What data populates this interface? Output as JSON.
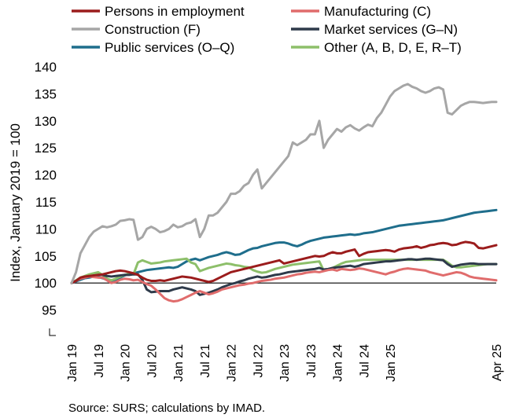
{
  "chart_data": {
    "type": "line",
    "ylabel": "Index, January 2019 = 100",
    "source": "Source: SURS; calculations by IMAD.",
    "ylim": [
      90,
      140
    ],
    "yticks": [
      "140",
      "135",
      "130",
      "125",
      "120",
      "115",
      "110",
      "105",
      "100",
      "95"
    ],
    "xticks": [
      "Jan 19",
      "Jul 19",
      "Jan 20",
      "Jul 20",
      "Jan 21",
      "Jul 21",
      "Jan 22",
      "Jul 22",
      "Jan 23",
      "Jul 23",
      "Jan 24",
      "Jul 24",
      "Jan 25",
      "Apr 25"
    ],
    "x_start": "2019-01",
    "x_end": "2025-04",
    "legend_position": "top",
    "series": [
      {
        "name": "Persons in employment",
        "color": "#9b1c1c",
        "values": [
          100.0,
          100.4,
          101.0,
          101.2,
          101.3,
          101.4,
          101.5,
          101.6,
          101.8,
          102.0,
          102.2,
          102.3,
          102.2,
          102.0,
          101.8,
          101.5,
          101.0,
          100.6,
          100.4,
          100.4,
          100.5,
          100.4,
          100.6,
          100.8,
          101.0,
          101.2,
          101.1,
          101.0,
          100.8,
          100.6,
          100.4,
          100.2,
          100.4,
          100.8,
          101.2,
          101.6,
          102.0,
          102.2,
          102.4,
          102.6,
          102.8,
          103.0,
          103.2,
          103.4,
          103.6,
          103.8,
          104.0,
          104.2,
          103.6,
          103.8,
          104.0,
          104.2,
          104.4,
          104.6,
          104.8,
          105.0,
          104.9,
          105.0,
          105.4,
          105.7,
          105.5,
          105.5,
          105.8,
          106.0,
          106.2,
          105.0,
          105.4,
          105.7,
          105.8,
          105.9,
          106.0,
          106.1,
          106.0,
          105.8,
          106.2,
          106.4,
          106.5,
          106.6,
          106.8,
          106.5,
          106.7,
          107.0,
          107.1,
          107.3,
          107.4,
          107.3,
          107.0,
          107.1,
          107.4,
          107.6,
          107.5,
          107.3,
          106.5,
          106.4,
          106.6,
          106.8,
          107.0
        ]
      },
      {
        "name": "Manufacturing (C)",
        "color": "#e06c6c",
        "values": [
          100.0,
          100.4,
          100.8,
          101.0,
          101.2,
          101.1,
          101.0,
          101.0,
          100.5,
          100.0,
          100.2,
          100.6,
          100.8,
          100.7,
          100.5,
          100.6,
          100.2,
          99.8,
          99.5,
          98.8,
          98.0,
          97.2,
          96.8,
          96.6,
          96.7,
          97.0,
          97.4,
          97.8,
          98.2,
          98.5,
          98.2,
          97.9,
          98.1,
          98.4,
          98.8,
          99.0,
          99.2,
          99.4,
          99.6,
          99.7,
          99.9,
          100.0,
          100.2,
          100.4,
          100.5,
          100.6,
          100.8,
          100.9,
          101.0,
          101.2,
          101.4,
          101.6,
          101.7,
          101.9,
          102.0,
          102.1,
          102.0,
          102.2,
          102.4,
          102.5,
          102.3,
          102.6,
          102.5,
          102.4,
          102.5,
          102.7,
          102.6,
          102.4,
          102.2,
          102.0,
          101.8,
          101.6,
          101.9,
          102.1,
          102.4,
          102.6,
          102.7,
          102.6,
          102.5,
          102.4,
          102.3,
          102.0,
          101.8,
          101.6,
          101.4,
          101.6,
          101.8,
          102.0,
          101.9,
          101.6,
          101.2,
          101.0,
          100.9,
          100.8,
          100.7,
          100.6,
          100.5
        ]
      },
      {
        "name": "Construction (F)",
        "color": "#a6a6a6",
        "values": [
          100.0,
          102.0,
          105.5,
          107.0,
          108.5,
          109.5,
          110.0,
          110.5,
          110.3,
          110.5,
          110.8,
          111.5,
          111.6,
          111.8,
          111.7,
          108.0,
          108.5,
          110.0,
          110.4,
          110.0,
          109.4,
          109.6,
          110.0,
          110.8,
          110.3,
          110.5,
          111.0,
          111.2,
          111.8,
          108.5,
          110.0,
          112.5,
          112.5,
          113.0,
          114.0,
          115.0,
          116.5,
          116.5,
          117.0,
          118.0,
          118.5,
          120.0,
          121.0,
          117.5,
          118.5,
          119.5,
          120.5,
          121.5,
          122.5,
          123.5,
          126.0,
          125.5,
          126.0,
          126.5,
          127.5,
          127.5,
          130.0,
          125.0,
          126.5,
          127.5,
          128.5,
          128.0,
          128.8,
          129.2,
          128.6,
          128.2,
          128.8,
          129.3,
          129.0,
          130.5,
          131.5,
          133.0,
          134.5,
          135.5,
          136.0,
          136.5,
          136.8,
          136.3,
          136.0,
          135.5,
          135.2,
          135.5,
          136.0,
          136.2,
          135.8,
          131.5,
          131.2,
          132.0,
          132.8,
          133.2,
          133.5,
          133.5,
          133.4,
          133.3,
          133.4,
          133.5,
          133.5
        ]
      },
      {
        "name": "Market services (G–N)",
        "color": "#2e3a4a",
        "values": [
          100.0,
          100.4,
          100.8,
          101.0,
          101.2,
          101.4,
          101.5,
          101.5,
          101.3,
          101.2,
          101.3,
          101.4,
          101.5,
          101.5,
          101.6,
          101.6,
          100.6,
          98.8,
          98.3,
          98.4,
          98.5,
          98.5,
          98.5,
          98.8,
          99.0,
          99.2,
          99.0,
          98.8,
          98.5,
          97.8,
          98.0,
          98.2,
          98.5,
          98.8,
          99.2,
          99.5,
          99.8,
          100.0,
          100.3,
          100.5,
          100.8,
          101.0,
          101.2,
          101.0,
          101.1,
          101.3,
          101.5,
          101.6,
          101.8,
          102.0,
          102.1,
          102.2,
          102.3,
          102.4,
          102.5,
          102.6,
          102.8,
          102.5,
          102.6,
          102.8,
          102.9,
          103.0,
          103.1,
          103.2,
          103.0,
          103.2,
          103.5,
          103.6,
          103.7,
          103.8,
          103.9,
          104.0,
          104.0,
          104.1,
          104.2,
          104.3,
          104.4,
          104.4,
          104.3,
          104.4,
          104.5,
          104.5,
          104.4,
          104.3,
          104.2,
          103.5,
          103.0,
          103.2,
          103.4,
          103.5,
          103.6,
          103.6,
          103.5,
          103.5,
          103.5,
          103.5,
          103.5
        ]
      },
      {
        "name": "Public services (O–Q)",
        "color": "#1f6e8c",
        "values": [
          100.0,
          100.3,
          100.6,
          100.9,
          101.0,
          101.2,
          101.1,
          100.9,
          100.6,
          100.4,
          100.6,
          101.0,
          101.4,
          101.7,
          101.8,
          102.0,
          102.2,
          102.4,
          102.5,
          102.6,
          102.7,
          102.8,
          102.9,
          102.8,
          103.0,
          103.5,
          104.0,
          104.3,
          104.5,
          104.2,
          104.5,
          104.8,
          105.0,
          105.2,
          105.5,
          105.7,
          105.5,
          105.2,
          105.3,
          105.7,
          106.1,
          106.4,
          106.5,
          106.8,
          107.0,
          107.2,
          107.4,
          107.5,
          107.5,
          107.3,
          107.0,
          106.8,
          107.1,
          107.5,
          107.8,
          108.0,
          108.2,
          108.4,
          108.5,
          108.6,
          108.7,
          108.8,
          108.9,
          109.0,
          108.9,
          109.0,
          109.2,
          109.3,
          109.4,
          109.6,
          109.8,
          110.0,
          110.2,
          110.4,
          110.6,
          110.7,
          110.8,
          110.9,
          111.0,
          111.1,
          111.2,
          111.3,
          111.4,
          111.5,
          111.6,
          111.8,
          112.0,
          112.2,
          112.4,
          112.6,
          112.8,
          113.0,
          113.1,
          113.2,
          113.3,
          113.4,
          113.5
        ]
      },
      {
        "name": "Other (A, B, D, E, R–T)",
        "color": "#8dbf6a",
        "values": [
          100.0,
          100.5,
          101.0,
          101.3,
          101.6,
          101.8,
          102.0,
          101.5,
          100.8,
          100.5,
          100.8,
          101.2,
          101.5,
          101.7,
          101.6,
          103.8,
          104.2,
          103.9,
          103.6,
          103.7,
          103.8,
          104.0,
          104.1,
          104.2,
          104.3,
          104.4,
          104.5,
          103.8,
          103.5,
          102.2,
          102.5,
          102.8,
          103.0,
          103.2,
          103.4,
          103.6,
          103.5,
          103.3,
          103.2,
          103.0,
          102.9,
          102.4,
          102.1,
          101.9,
          102.0,
          102.3,
          102.6,
          102.8,
          103.0,
          103.2,
          103.4,
          103.5,
          103.6,
          103.7,
          103.8,
          103.9,
          104.0,
          102.3,
          102.5,
          102.8,
          103.2,
          103.6,
          103.9,
          104.0,
          104.1,
          104.2,
          104.3,
          104.3,
          104.3,
          104.3,
          104.3,
          104.3,
          104.3,
          104.3,
          104.3,
          104.3,
          104.3,
          104.3,
          104.3,
          104.3,
          104.3,
          104.3,
          104.3,
          104.3,
          104.3,
          103.8,
          103.2,
          102.9,
          102.9,
          103.0,
          103.1,
          103.2,
          103.3,
          103.4,
          103.5,
          103.5,
          103.5
        ]
      }
    ]
  }
}
